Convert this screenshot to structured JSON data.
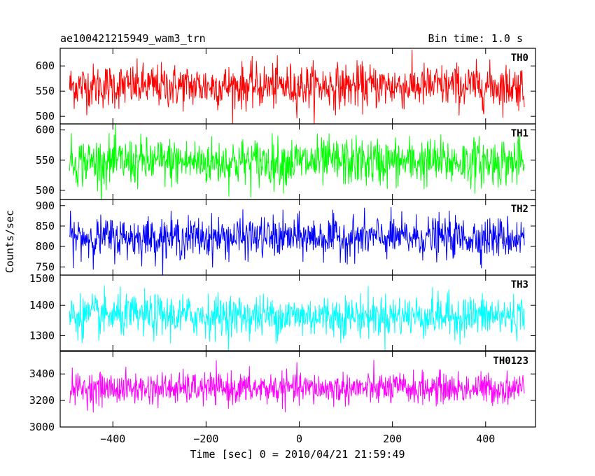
{
  "header": {
    "title": "ae100421215949_wam3_trn",
    "bin_time": "Bin time: 1.0 s"
  },
  "chart_data": {
    "type": "line",
    "title": "ae100421215949_wam3_trn",
    "xlabel": "Time [sec] 0 = 2010/04/21 21:59:49",
    "ylabel": "Counts/sec",
    "xlim": [
      -513,
      507
    ],
    "x_range_data": [
      -493,
      483
    ],
    "bin_time_s": 1.0,
    "x_ticks": [
      -400,
      -200,
      0,
      200,
      400
    ],
    "x_tick_labels": [
      "−400",
      "−200",
      "0",
      "200",
      "400"
    ],
    "grid": false,
    "panels": [
      {
        "name": "TH0",
        "color": "#ff0000",
        "ylim": [
          485,
          635
        ],
        "y_ticks": [
          500,
          550,
          600
        ],
        "y_tick_labels": [
          "500",
          "550",
          "600"
        ],
        "mean": 560,
        "noise_amplitude": 22
      },
      {
        "name": "TH1",
        "color": "#00ff00",
        "ylim": [
          485,
          610
        ],
        "y_ticks": [
          500,
          550,
          600
        ],
        "y_tick_labels": [
          "500",
          "550",
          "600"
        ],
        "mean": 547,
        "noise_amplitude": 20
      },
      {
        "name": "TH2",
        "color": "#0000ff",
        "ylim": [
          730,
          915
        ],
        "y_ticks": [
          750,
          800,
          850,
          900
        ],
        "y_tick_labels": [
          "750",
          "800",
          "850",
          "900"
        ],
        "mean": 822,
        "noise_amplitude": 25
      },
      {
        "name": "TH3",
        "color": "#00ffff",
        "ylim": [
          1250,
          1500
        ],
        "y_ticks": [
          1300,
          1400,
          1500
        ],
        "y_tick_labels": [
          "1300",
          "1400",
          "1500"
        ],
        "mean": 1365,
        "noise_amplitude": 35
      },
      {
        "name": "TH0123",
        "color": "#ff00ff",
        "ylim": [
          3000,
          3570
        ],
        "y_ticks": [
          3000,
          3200,
          3400
        ],
        "y_tick_labels": [
          "3000",
          "3200",
          "3400"
        ],
        "mean": 3290,
        "noise_amplitude": 60
      }
    ]
  }
}
